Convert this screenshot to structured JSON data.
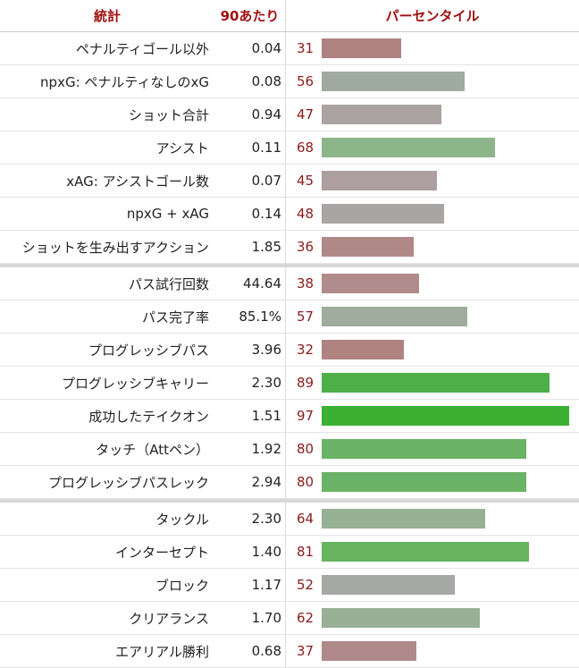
{
  "header": {
    "stat": "統計",
    "per90": "90あたり",
    "percentile": "パーセンタイル"
  },
  "sections": [
    {
      "rows": [
        {
          "stat": "ペナルティゴール以外",
          "per90": "0.04",
          "percentile": 31,
          "color": "#b08383"
        },
        {
          "stat": "npxG: ペナルティなしのxG",
          "per90": "0.08",
          "percentile": 56,
          "color": "#a0ab9f"
        },
        {
          "stat": "ショット合計",
          "per90": "0.94",
          "percentile": 47,
          "color": "#aba2a2"
        },
        {
          "stat": "アシスト",
          "per90": "0.11",
          "percentile": 68,
          "color": "#8db58a"
        },
        {
          "stat": "xAG: アシストゴール数",
          "per90": "0.07",
          "percentile": 45,
          "color": "#ad9f9f"
        },
        {
          "stat": "npxG + xAG",
          "per90": "0.14",
          "percentile": 48,
          "color": "#aaa5a5"
        },
        {
          "stat": "ショットを生み出すアクション",
          "per90": "1.85",
          "percentile": 36,
          "color": "#b08888"
        }
      ]
    },
    {
      "rows": [
        {
          "stat": "パス試行回数",
          "per90": "44.64",
          "percentile": 38,
          "color": "#b08b8b"
        },
        {
          "stat": "パス完了率",
          "per90": "85.1%",
          "percentile": 57,
          "color": "#9fac9e"
        },
        {
          "stat": "プログレッシブパス",
          "per90": "3.96",
          "percentile": 32,
          "color": "#b08383"
        },
        {
          "stat": "プログレッシブキャリー",
          "per90": "2.30",
          "percentile": 89,
          "color": "#4caf48"
        },
        {
          "stat": "成功したテイクオン",
          "per90": "1.51",
          "percentile": 97,
          "color": "#3bb033"
        },
        {
          "stat": "タッチ（Attペン）",
          "per90": "1.92",
          "percentile": 80,
          "color": "#6ab265"
        },
        {
          "stat": "プログレッシブパスレック",
          "per90": "2.94",
          "percentile": 80,
          "color": "#6ab265"
        }
      ]
    },
    {
      "rows": [
        {
          "stat": "タックル",
          "per90": "2.30",
          "percentile": 64,
          "color": "#96b193"
        },
        {
          "stat": "インターセプト",
          "per90": "1.40",
          "percentile": 81,
          "color": "#66b360"
        },
        {
          "stat": "ブロック",
          "per90": "1.17",
          "percentile": 52,
          "color": "#a5a8a4"
        },
        {
          "stat": "クリアランス",
          "per90": "1.70",
          "percentile": 62,
          "color": "#99b096"
        },
        {
          "stat": "エアリアル勝利",
          "per90": "0.68",
          "percentile": 37,
          "color": "#b08a8a"
        }
      ]
    }
  ]
}
